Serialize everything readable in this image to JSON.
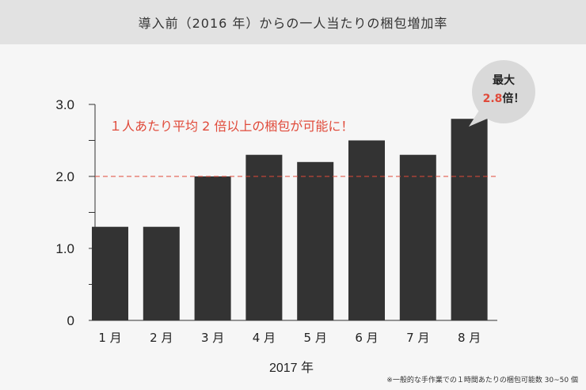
{
  "header": {
    "title": "導入前（2016 年）からの一人当たりの梱包増加率"
  },
  "chart_data": {
    "type": "bar",
    "categories": [
      "1 月",
      "2 月",
      "3 月",
      "4 月",
      "5 月",
      "6 月",
      "7 月",
      "8 月"
    ],
    "values": [
      1.3,
      1.3,
      2.0,
      2.3,
      2.2,
      2.5,
      2.3,
      2.8
    ],
    "ylim": [
      0,
      3.0
    ],
    "yticks": [
      "0",
      "1.0",
      "2.0",
      "3.0"
    ],
    "xlabel": "2017 年",
    "reference_line": {
      "value": 2.0,
      "style": "dashed",
      "color": "#e04a3a"
    },
    "annotation": "１人あたり平均 2 倍以上の梱包が可能に！",
    "callout": {
      "line1": "最大",
      "value": "2.8",
      "suffix": "倍！"
    },
    "footnote": "※一般的な手作業での１時間あたりの梱包可能数 30~50 個",
    "bar_color": "#333333",
    "grid": false
  }
}
